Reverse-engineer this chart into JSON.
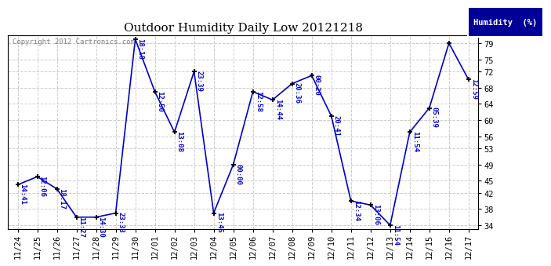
{
  "title": "Outdoor Humidity Daily Low 20121218",
  "copyright_text": "Copyright 2012 Cartronics.com",
  "legend_label": "Humidity  (%)",
  "xlim_start": -0.5,
  "xlim_end": 23.5,
  "ylim": [
    33,
    81
  ],
  "yticks": [
    34,
    38,
    42,
    45,
    49,
    53,
    56,
    60,
    64,
    68,
    72,
    75,
    79
  ],
  "line_color": "#0000CC",
  "marker_color": "#000000",
  "bg_color": "#ffffff",
  "grid_color": "#cccccc",
  "x_labels": [
    "11/24",
    "11/25",
    "11/26",
    "11/27",
    "11/28",
    "11/29",
    "11/30",
    "12/01",
    "12/02",
    "12/03",
    "12/04",
    "12/05",
    "12/06",
    "12/07",
    "12/08",
    "12/09",
    "12/10",
    "12/11",
    "12/12",
    "12/13",
    "12/14",
    "12/15",
    "12/16",
    "12/17"
  ],
  "y_values": [
    44,
    46,
    43,
    36,
    36,
    37,
    80,
    67,
    57,
    72,
    37,
    49,
    67,
    65,
    69,
    71,
    61,
    40,
    39,
    34,
    57,
    63,
    79,
    70
  ],
  "time_labels": [
    "14:41",
    "12:06",
    "18:17",
    "11:27",
    "14:30",
    "23:33",
    "18:18",
    "12:50",
    "13:08",
    "23:39",
    "13:45",
    "00:00",
    "12:58",
    "14:44",
    "20:36",
    "00:20",
    "20:41",
    "12:34",
    "13:06",
    "11:54",
    "11:54",
    "05:39",
    "",
    "12:59"
  ],
  "title_fontsize": 11,
  "tick_fontsize": 7.5,
  "label_fontsize": 6.5,
  "copyright_fontsize": 6.5,
  "legend_fontsize": 7.5
}
